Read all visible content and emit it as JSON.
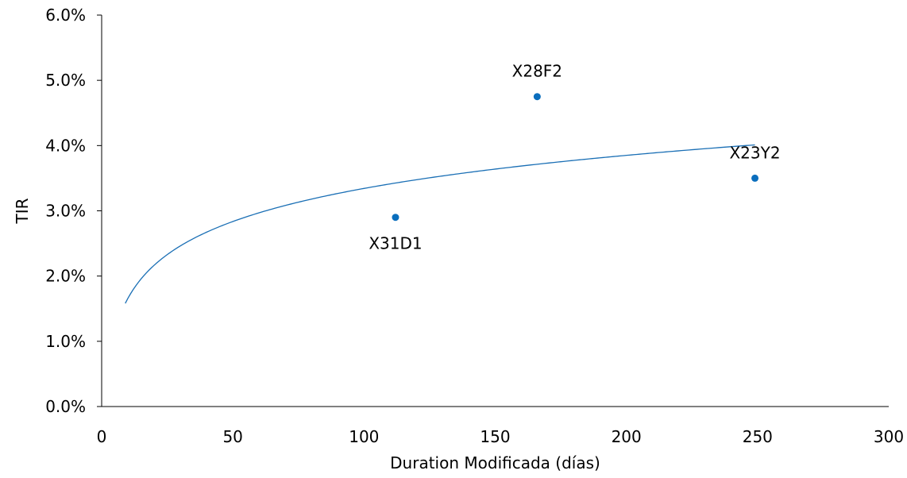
{
  "chart_data": {
    "type": "scatter",
    "title": "",
    "xlabel": "Duration  Modificada (días)",
    "ylabel": "TIR",
    "xlim": [
      0,
      300
    ],
    "ylim": [
      0,
      6
    ],
    "x_ticks": [
      0,
      50,
      100,
      150,
      200,
      250,
      300
    ],
    "x_tick_labels": [
      "0",
      "50",
      "100",
      "150",
      "200",
      "250",
      "300"
    ],
    "y_ticks": [
      0,
      1,
      2,
      3,
      4,
      5,
      6
    ],
    "y_tick_labels": [
      "0.0%",
      "1.0%",
      "2.0%",
      "3.0%",
      "4.0%",
      "5.0%",
      "6.0%"
    ],
    "grid": false,
    "points": [
      {
        "label": "X31D1",
        "x": 112,
        "y": 2.9,
        "label_position": "below"
      },
      {
        "label": "X28F2",
        "x": 166,
        "y": 4.75,
        "label_position": "above"
      },
      {
        "label": "X23Y2",
        "x": 249,
        "y": 3.5,
        "label_position": "above"
      }
    ],
    "trendline": {
      "type": "logarithmic",
      "x_range": [
        9,
        249
      ]
    },
    "colors": {
      "points": "#0a6ebd",
      "trendline": "#1a6fb5",
      "axis": "#000000"
    }
  }
}
